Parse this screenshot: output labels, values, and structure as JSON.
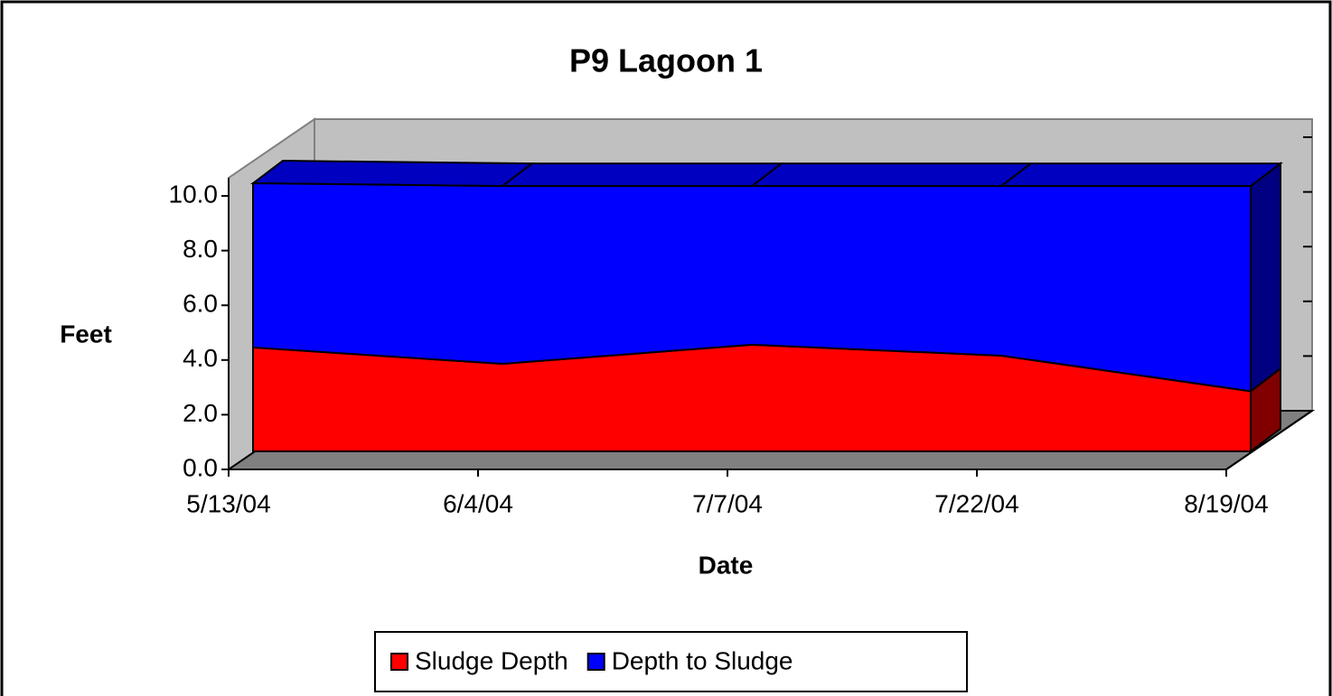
{
  "chart_data": {
    "type": "area3d",
    "title": "P9 Lagoon 1",
    "y_label": "Feet",
    "x_label": "Date",
    "categories": [
      "5/13/04",
      "6/4/04",
      "7/7/04",
      "7/22/04",
      "8/19/04"
    ],
    "series": [
      {
        "name": "Sludge Depth",
        "color": "#ff0000",
        "values": [
          3.8,
          3.2,
          3.9,
          3.5,
          2.2
        ]
      },
      {
        "name": "Depth to Sludge",
        "color": "#0000ff",
        "values": [
          6.0,
          6.5,
          5.8,
          6.2,
          7.5
        ]
      }
    ],
    "stacked": true,
    "ylim": [
      0,
      10
    ],
    "yticks": [
      {
        "value": 0,
        "label": "0.0"
      },
      {
        "value": 2,
        "label": "2.0"
      },
      {
        "value": 4,
        "label": "4.0"
      },
      {
        "value": 6,
        "label": "6.0"
      },
      {
        "value": 8,
        "label": "8.0"
      },
      {
        "value": 10,
        "label": "10.0"
      }
    ],
    "legend": "bottom"
  }
}
